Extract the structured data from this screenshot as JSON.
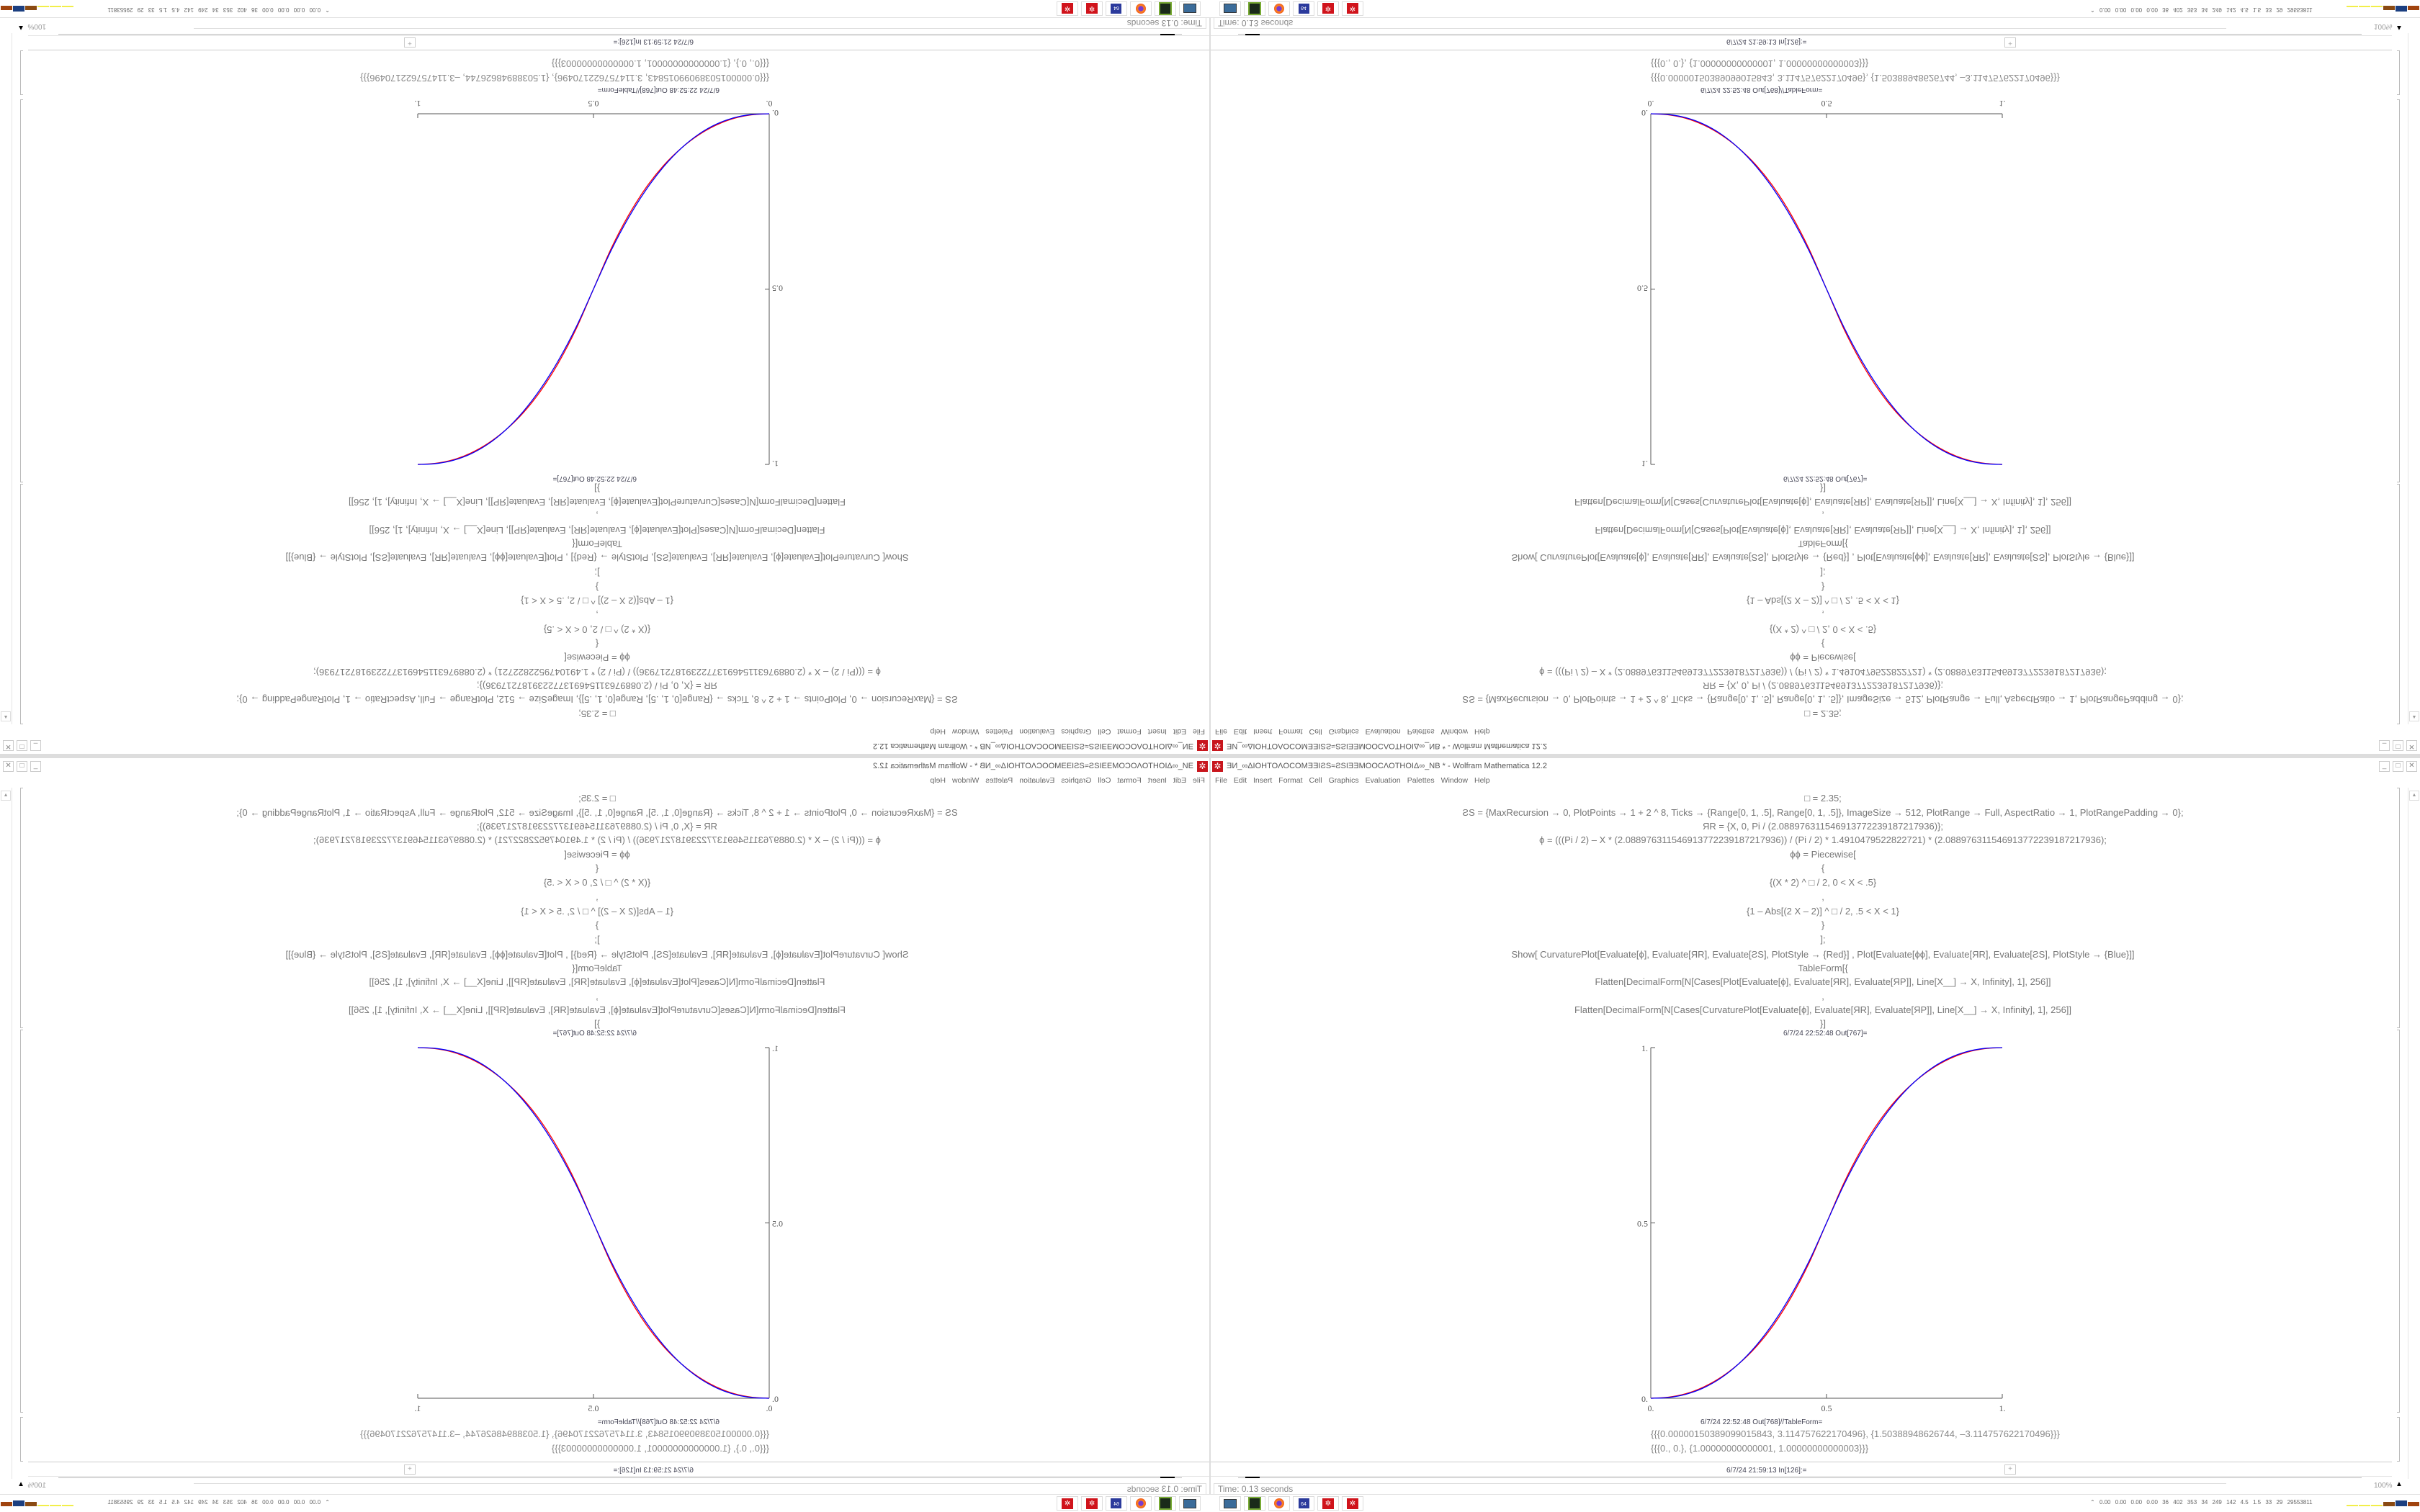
{
  "window": {
    "title": "ƎИ_∞ΔIOHTOΛOCOMƎƎIƧS≈ƧSIƎƎMOOCΛOTHOIΔ∞_NB * - Wolfram Mathematica 12.2",
    "controls": {
      "minimize": "_",
      "maximize": "□",
      "close": "✕"
    }
  },
  "menu": [
    "File",
    "Edit",
    "Insert",
    "Format",
    "Cell",
    "Graphics",
    "Evaluation",
    "Palettes",
    "Window",
    "Help"
  ],
  "code_lines": [
    "□ = 2.35;",
    "ƧS = {MaxRecursion → 0, PlotPoints → 1 + 2 ^ 8, Ticks → {Range[0, 1, .5], Range[0, 1, .5]}, ImageSize → 512, PlotRange → Full, AspectRatio → 1, PlotRangePadding → 0};",
    "ЯR = {X, 0, Pi / (2.08897631154691377223918721793​6)};",
    "ϕ = (((Pi / 2) – X * (2.088976311546913772239187217936)) / (Pi / 2) * 1.4910479522822721) * (2.088976311546913772239187217936);",
    "ϕϕ = Piecewise[",
    "{",
    "{(X * 2) ^ □ / 2, 0 < X < .5}",
    ",",
    "{1 – Abs[(2 X – 2)] ^ □ / 2, .5 < X < 1}",
    "}",
    "];",
    "Show[   CurvaturePlot[Evaluate[ϕ], Evaluate[ЯR], Evaluate[ƧS], PlotStyle → {Red}]   ,   Plot[Evaluate[ϕϕ], Evaluate[ЯR], Evaluate[ƧS],  PlotStyle → {Blue}]]",
    "TableForm[{",
    "Flatten[DecimalForm[N[Cases[Plot[Evaluate[ϕ], Evaluate[ЯR], Evaluate[ЯP]], Line[X__] → X, Infinity], 1], 256]]",
    ",",
    "Flatten[DecimalForm[N[Cases[CurvaturePlot[Evaluate[ϕ], Evaluate[ЯR], Evaluate[ЯP]], Line[X__] → X, Infinity], 1], 256]]",
    "}]"
  ],
  "out_plot_label": "6/7/24 22:52:48 Out[767]=",
  "out_table_label": "6/7/24 22:52:48 Out[768]//TableForm=",
  "out_table_rows": [
    "{{{0.0000015038909901584​3, 3.114757622170496}, {1.50388948626744, –3.114757622170496}}}",
    "{{{0., 0.}, {1.00000000000001, 1.00000000000003}}}"
  ],
  "input_label": "6/7/24 21:59:13 In[126]:=",
  "status": {
    "time": "Time: 0.13 seconds",
    "zoom": "100%"
  },
  "taskbar": {
    "icons": [
      "monitor-icon",
      "drive-icon",
      "firefox-icon",
      "floppy-64-icon",
      "mathematica-icon",
      "mathematica-icon"
    ],
    "floppy_label": "64",
    "tray_stats": "0.00 0.00 0.00 0.00  36  402  353  34  249  142  4.5  1.5  33  29  29553811",
    "meter_colors": [
      "#f2ee4a",
      "#f2ee4a",
      "#f2ee4a",
      "#8a4a12",
      "#1c3f80",
      "#a0440f",
      "#33bb33",
      "#33bb33"
    ]
  },
  "chart_data": {
    "type": "line",
    "title": "",
    "xlabel": "",
    "ylabel": "",
    "xlim": [
      0,
      1
    ],
    "ylim": [
      0,
      1
    ],
    "xticks": [
      "0.",
      "0.5",
      "1."
    ],
    "yticks": [
      "0.",
      "0.5",
      "1."
    ],
    "grid": false,
    "x": [
      0,
      0.05,
      0.1,
      0.15,
      0.2,
      0.25,
      0.3,
      0.35,
      0.4,
      0.45,
      0.5,
      0.55,
      0.6,
      0.65,
      0.7,
      0.75,
      0.8,
      0.85,
      0.9,
      0.95,
      1
    ],
    "series": [
      {
        "color": "#ff0000",
        "values": [
          0,
          0.003,
          0.013,
          0.032,
          0.06,
          0.098,
          0.147,
          0.21,
          0.289,
          0.385,
          0.5,
          0.615,
          0.711,
          0.79,
          0.853,
          0.902,
          0.94,
          0.968,
          0.987,
          0.997,
          1
        ]
      },
      {
        "color": "#0000ff",
        "values": [
          0,
          0.0022,
          0.0114,
          0.0295,
          0.058,
          0.0981,
          0.1506,
          0.2163,
          0.296,
          0.3903,
          0.5,
          0.6097,
          0.704,
          0.7837,
          0.8494,
          0.9019,
          0.942,
          0.9705,
          0.9886,
          0.9978,
          1
        ]
      }
    ]
  }
}
